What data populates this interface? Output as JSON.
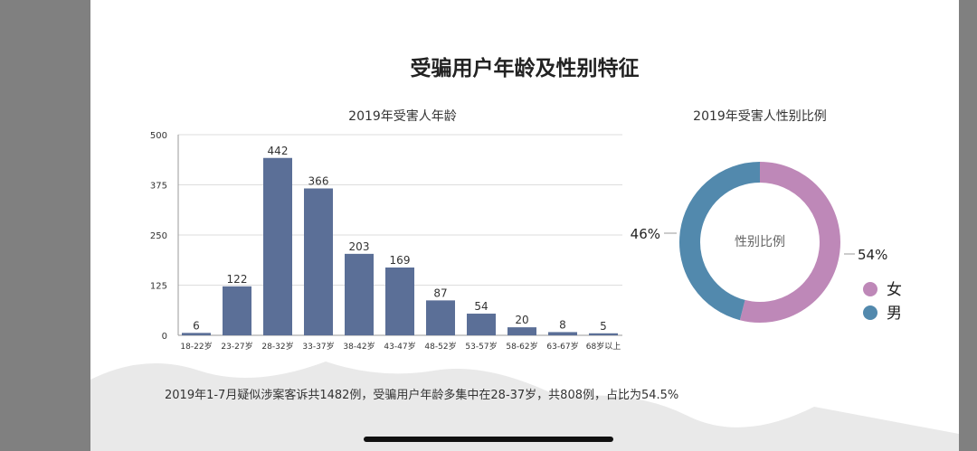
{
  "page_title": "受骗用户年龄及性别特征",
  "footnote": "2019年1-7月疑似涉案客诉共1482例，受骗用户年龄多集中在28-37岁，共808例，占比为54.5%",
  "colors": {
    "bar": "#5b6f97",
    "female": "#be88b8",
    "male": "#5289ad"
  },
  "chart_data": [
    {
      "type": "bar",
      "title": "2019年受害人年龄",
      "categories": [
        "18-22岁",
        "23-27岁",
        "28-32岁",
        "33-37岁",
        "38-42岁",
        "43-47岁",
        "48-52岁",
        "53-57岁",
        "58-62岁",
        "63-67岁",
        "68岁以上"
      ],
      "values": [
        6,
        122,
        442,
        366,
        203,
        169,
        87,
        54,
        20,
        8,
        5
      ],
      "yticks": [
        "0",
        "125",
        "250",
        "375",
        "500"
      ],
      "ylim": [
        0,
        500
      ],
      "grid": true
    },
    {
      "type": "pie",
      "title": "2019年受害人性别比例",
      "center_label": "性别比例",
      "slices": [
        {
          "name": "女",
          "value": 54,
          "label": "54%"
        },
        {
          "name": "男",
          "value": 46,
          "label": "46%"
        }
      ],
      "legend": "bottom-right"
    }
  ]
}
